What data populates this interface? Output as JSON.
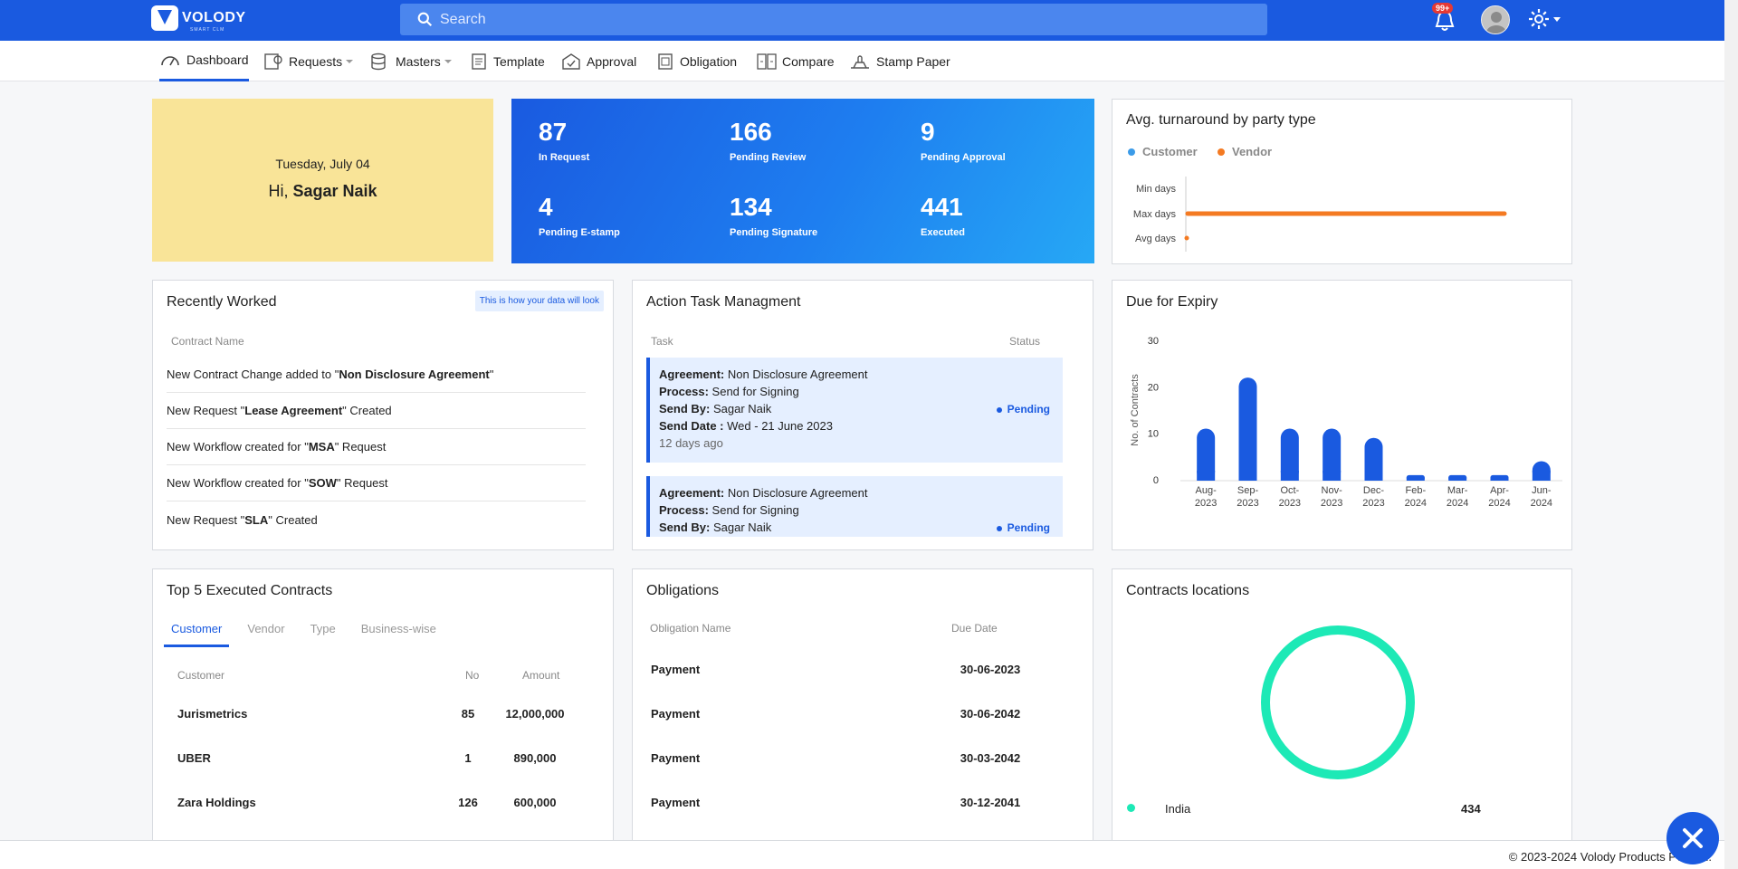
{
  "brand": {
    "name": "VOLODY",
    "tagline": "SMART CLM"
  },
  "search": {
    "placeholder": "Search"
  },
  "notifications": {
    "badge": "99+"
  },
  "nav": [
    {
      "label": "Dashboard",
      "icon": "speedometer-icon",
      "dropdown": false
    },
    {
      "label": "Requests",
      "icon": "requests-icon",
      "dropdown": true
    },
    {
      "label": "Masters",
      "icon": "database-icon",
      "dropdown": true
    },
    {
      "label": "Template",
      "icon": "template-icon",
      "dropdown": false
    },
    {
      "label": "Approval",
      "icon": "approval-icon",
      "dropdown": false
    },
    {
      "label": "Obligation",
      "icon": "obligation-icon",
      "dropdown": false
    },
    {
      "label": "Compare",
      "icon": "compare-icon",
      "dropdown": false
    },
    {
      "label": "Stamp Paper",
      "icon": "stamp-icon",
      "dropdown": false
    }
  ],
  "greeting": {
    "date": "Tuesday, July 04",
    "hi": "Hi,",
    "name": "Sagar Naik"
  },
  "stats": [
    {
      "value": "87",
      "label": "In Request"
    },
    {
      "value": "166",
      "label": "Pending Review"
    },
    {
      "value": "9",
      "label": "Pending Approval"
    },
    {
      "value": "4",
      "label": "Pending E-stamp"
    },
    {
      "value": "134",
      "label": "Pending Signature"
    },
    {
      "value": "441",
      "label": "Executed"
    }
  ],
  "turnaround": {
    "title": "Avg. turnaround by party type",
    "legend": [
      {
        "name": "Customer",
        "color": "#3b9be8"
      },
      {
        "name": "Vendor",
        "color": "#f47a22"
      }
    ],
    "rows": [
      "Min days",
      "Max days",
      "Avg days"
    ]
  },
  "recent": {
    "title": "Recently Worked",
    "hint": "This is how your data will look",
    "column": "Contract Name",
    "items": [
      {
        "pre": "New Contract Change added to \"",
        "bold": "Non Disclosure Agreement",
        "post": "\""
      },
      {
        "pre": "New Request \"",
        "bold": "Lease Agreement",
        "post": "\" Created"
      },
      {
        "pre": "New Workflow created for \"",
        "bold": "MSA",
        "post": "\" Request"
      },
      {
        "pre": "New Workflow created for \"",
        "bold": "SOW",
        "post": "\" Request"
      },
      {
        "pre": "New Request \"",
        "bold": "SLA",
        "post": "\" Created"
      }
    ]
  },
  "action": {
    "title": "Action Task Managment",
    "col_task": "Task",
    "col_status": "Status",
    "labels": {
      "agreement": "Agreement:",
      "process": "Process:",
      "send_by": "Send By:",
      "send_date": "Send Date :"
    },
    "tasks": [
      {
        "agreement": "Non Disclosure Agreement",
        "process": "Send for Signing",
        "send_by": "Sagar Naik",
        "send_date": "Wed - 21 June 2023",
        "ago": "12 days ago",
        "status": "Pending"
      },
      {
        "agreement": "Non Disclosure Agreement",
        "process": "Send for Signing",
        "send_by": "Sagar Naik",
        "send_date": "",
        "ago": "",
        "status": "Pending"
      }
    ]
  },
  "expiry": {
    "title": "Due for Expiry"
  },
  "chart_data": {
    "type": "bar",
    "title": "Due for Expiry",
    "ylabel": "No. of Contracts",
    "xlabel": "",
    "categories": [
      [
        "Aug-",
        "2023"
      ],
      [
        "Sep-",
        "2023"
      ],
      [
        "Oct-",
        "2023"
      ],
      [
        "Nov-",
        "2023"
      ],
      [
        "Dec-",
        "2023"
      ],
      [
        "Feb-",
        "2024"
      ],
      [
        "Mar-",
        "2024"
      ],
      [
        "Apr-",
        "2024"
      ],
      [
        "Jun-",
        "2024"
      ]
    ],
    "values": [
      11,
      22,
      11,
      11,
      9,
      1,
      1,
      1,
      4
    ],
    "ylim": [
      0,
      30
    ],
    "yticks": [
      "0",
      "10",
      "20",
      "30"
    ],
    "color": "#1a5ae0"
  },
  "top5": {
    "title": "Top 5 Executed Contracts",
    "tabs": [
      "Customer",
      "Vendor",
      "Type",
      "Business-wise"
    ],
    "cols": [
      "Customer",
      "No",
      "Amount"
    ],
    "rows": [
      {
        "name": "Jurismetrics",
        "no": "85",
        "amount": "12,000,000"
      },
      {
        "name": "UBER",
        "no": "1",
        "amount": "890,000"
      },
      {
        "name": "Zara Holdings",
        "no": "126",
        "amount": "600,000"
      }
    ]
  },
  "obligations": {
    "title": "Obligations",
    "cols": [
      "Obligation Name",
      "Due Date"
    ],
    "rows": [
      {
        "name": "Payment",
        "due": "30-06-2023"
      },
      {
        "name": "Payment",
        "due": "30-06-2042"
      },
      {
        "name": "Payment",
        "due": "30-03-2042"
      },
      {
        "name": "Payment",
        "due": "30-12-2041"
      }
    ]
  },
  "locations": {
    "title": "Contracts locations",
    "items": [
      {
        "name": "India",
        "count": "434",
        "color": "#1de9b6"
      }
    ]
  },
  "footer": {
    "text": "© 2023-2024 Volody Products Pvt. Ltd."
  }
}
